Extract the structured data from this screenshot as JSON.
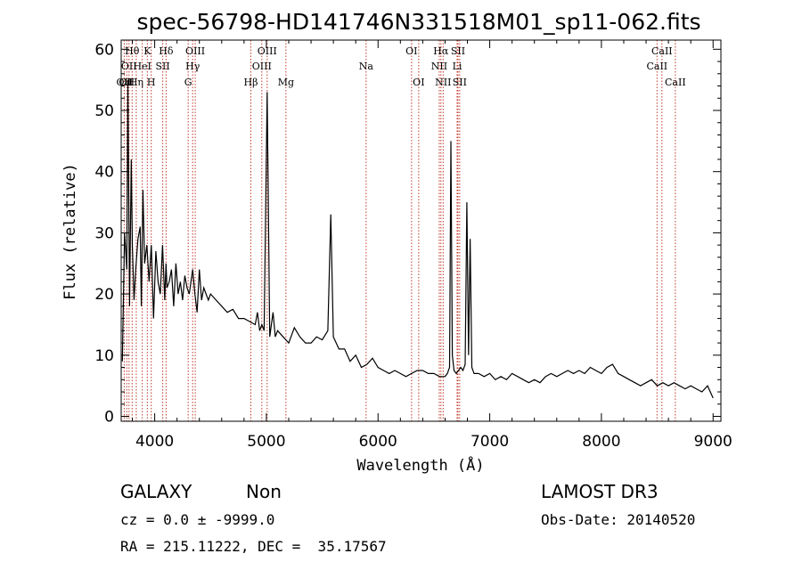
{
  "chart_data": {
    "type": "line",
    "title": "spec-56798-HD141746N331518M01_sp11-062.fits",
    "xlabel": "Wavelength (Å)",
    "ylabel": "Flux (relative)",
    "xlim": [
      3700,
      9070
    ],
    "ylim": [
      -0.8,
      61.5
    ],
    "x_ticks": [
      4000,
      5000,
      6000,
      7000,
      8000,
      9000
    ],
    "y_ticks": [
      0,
      10,
      20,
      30,
      40,
      50,
      60
    ],
    "grid": false,
    "line_color": "#000000",
    "marker_color": "#c0392b",
    "series": [
      {
        "x": [
          3710,
          3730,
          3750,
          3760,
          3775,
          3790,
          3800,
          3815,
          3830,
          3850,
          3870,
          3880,
          3895,
          3910,
          3930,
          3950,
          3970,
          3990,
          4010,
          4030,
          4050,
          4070,
          4090,
          4101,
          4110,
          4130,
          4150,
          4170,
          4190,
          4210,
          4230,
          4250,
          4270,
          4290,
          4310,
          4340,
          4360,
          4380,
          4400,
          4420,
          4440,
          4460,
          4480,
          4500,
          4550,
          4600,
          4650,
          4700,
          4750,
          4800,
          4850,
          4900,
          4920,
          4940,
          4960,
          4980,
          5007,
          5030,
          5060,
          5080,
          5100,
          5150,
          5200,
          5250,
          5300,
          5350,
          5400,
          5450,
          5500,
          5550,
          5577,
          5600,
          5650,
          5700,
          5750,
          5800,
          5850,
          5900,
          5950,
          6000,
          6050,
          6100,
          6150,
          6200,
          6250,
          6300,
          6350,
          6400,
          6450,
          6500,
          6550,
          6600,
          6620,
          6640,
          6652,
          6665,
          6680,
          6700,
          6720,
          6740,
          6760,
          6780,
          6795,
          6810,
          6825,
          6840,
          6860,
          6900,
          6950,
          7000,
          7050,
          7100,
          7150,
          7200,
          7250,
          7300,
          7350,
          7400,
          7450,
          7500,
          7550,
          7600,
          7650,
          7700,
          7750,
          7800,
          7850,
          7900,
          7950,
          8000,
          8050,
          8100,
          8150,
          8200,
          8250,
          8300,
          8350,
          8400,
          8450,
          8500,
          8550,
          8600,
          8650,
          8700,
          8750,
          8800,
          8850,
          8900,
          8950,
          9000
        ],
        "y": [
          9,
          30,
          24,
          55,
          18,
          42,
          28,
          19,
          24,
          29,
          31,
          18,
          37,
          25,
          28,
          22,
          28,
          16,
          27,
          22,
          20,
          28,
          19,
          25,
          21,
          22,
          24,
          18,
          25,
          20,
          22,
          19,
          23,
          21,
          20,
          24,
          20,
          17,
          24,
          19,
          21,
          20,
          19,
          20,
          19,
          18,
          17,
          17.5,
          16,
          16,
          15.5,
          15,
          17,
          14,
          15,
          14,
          53,
          13,
          17,
          13,
          14,
          13,
          12,
          14.5,
          13,
          12,
          12,
          13,
          12.5,
          14,
          33,
          13,
          11,
          11,
          9,
          10,
          8,
          8.5,
          9.5,
          8,
          7.5,
          7,
          7.5,
          7,
          6.5,
          7,
          7.5,
          7.5,
          7,
          7,
          6.5,
          6.5,
          7,
          8,
          45,
          10,
          7.5,
          7,
          7.5,
          8,
          7.5,
          8.5,
          35,
          10,
          29,
          8,
          7,
          7,
          6.5,
          7,
          6,
          6.5,
          6,
          7,
          6.5,
          6,
          5.5,
          6,
          5.5,
          6.5,
          7,
          6.5,
          7,
          7.5,
          7,
          7.5,
          7,
          8,
          7.5,
          7,
          8,
          8.5,
          7,
          6.5,
          6,
          5.5,
          5,
          5.5,
          6,
          5,
          5.5,
          5,
          5.5,
          5,
          4.5,
          5,
          4.5,
          4,
          5,
          3
        ]
      }
    ],
    "lines": [
      {
        "x": 3727,
        "row": 3,
        "label": "OII"
      },
      {
        "x": 3750,
        "row": 3,
        "label": "OII"
      },
      {
        "x": 3770,
        "row": 2,
        "label": "OII"
      },
      {
        "x": 3798,
        "row": 1,
        "label": "Hθ"
      },
      {
        "x": 3835,
        "row": 3,
        "label": "Hη"
      },
      {
        "x": 3889,
        "row": 2,
        "label": "HeI"
      },
      {
        "x": 3934,
        "row": 1,
        "label": "K"
      },
      {
        "x": 3969,
        "row": 3,
        "label": "H"
      },
      {
        "x": 4072,
        "row": 2,
        "label": "SII"
      },
      {
        "x": 4102,
        "row": 1,
        "label": "Hδ"
      },
      {
        "x": 4300,
        "row": 3,
        "label": "G"
      },
      {
        "x": 4340,
        "row": 2,
        "label": "Hγ"
      },
      {
        "x": 4363,
        "row": 1,
        "label": "OIII"
      },
      {
        "x": 4861,
        "row": 3,
        "label": "Hβ"
      },
      {
        "x": 4959,
        "row": 2,
        "label": "OIII"
      },
      {
        "x": 5007,
        "row": 1,
        "label": "OIII"
      },
      {
        "x": 5175,
        "row": 3,
        "label": "Mg"
      },
      {
        "x": 5893,
        "row": 2,
        "label": "Na"
      },
      {
        "x": 6300,
        "row": 1,
        "label": "OI"
      },
      {
        "x": 6364,
        "row": 3,
        "label": "OI"
      },
      {
        "x": 6548,
        "row": 2,
        "label": "NII"
      },
      {
        "x": 6563,
        "row": 1,
        "label": "Hα"
      },
      {
        "x": 6583,
        "row": 3,
        "label": "NII"
      },
      {
        "x": 6708,
        "row": 2,
        "label": "Li"
      },
      {
        "x": 6716,
        "row": 1,
        "label": "SII"
      },
      {
        "x": 6731,
        "row": 3,
        "label": "SII"
      },
      {
        "x": 8498,
        "row": 2,
        "label": "CaII"
      },
      {
        "x": 8542,
        "row": 1,
        "label": "CaII"
      },
      {
        "x": 8662,
        "row": 3,
        "label": "CaII"
      }
    ]
  },
  "info": {
    "class": "GALAXY",
    "subclass": "Non",
    "survey": "LAMOST DR3",
    "cz": "cz = 0.0 ± -9999.0",
    "obs_date": "Obs-Date: 20140520",
    "radec": "RA = 215.11222, DEC =  35.17567"
  }
}
